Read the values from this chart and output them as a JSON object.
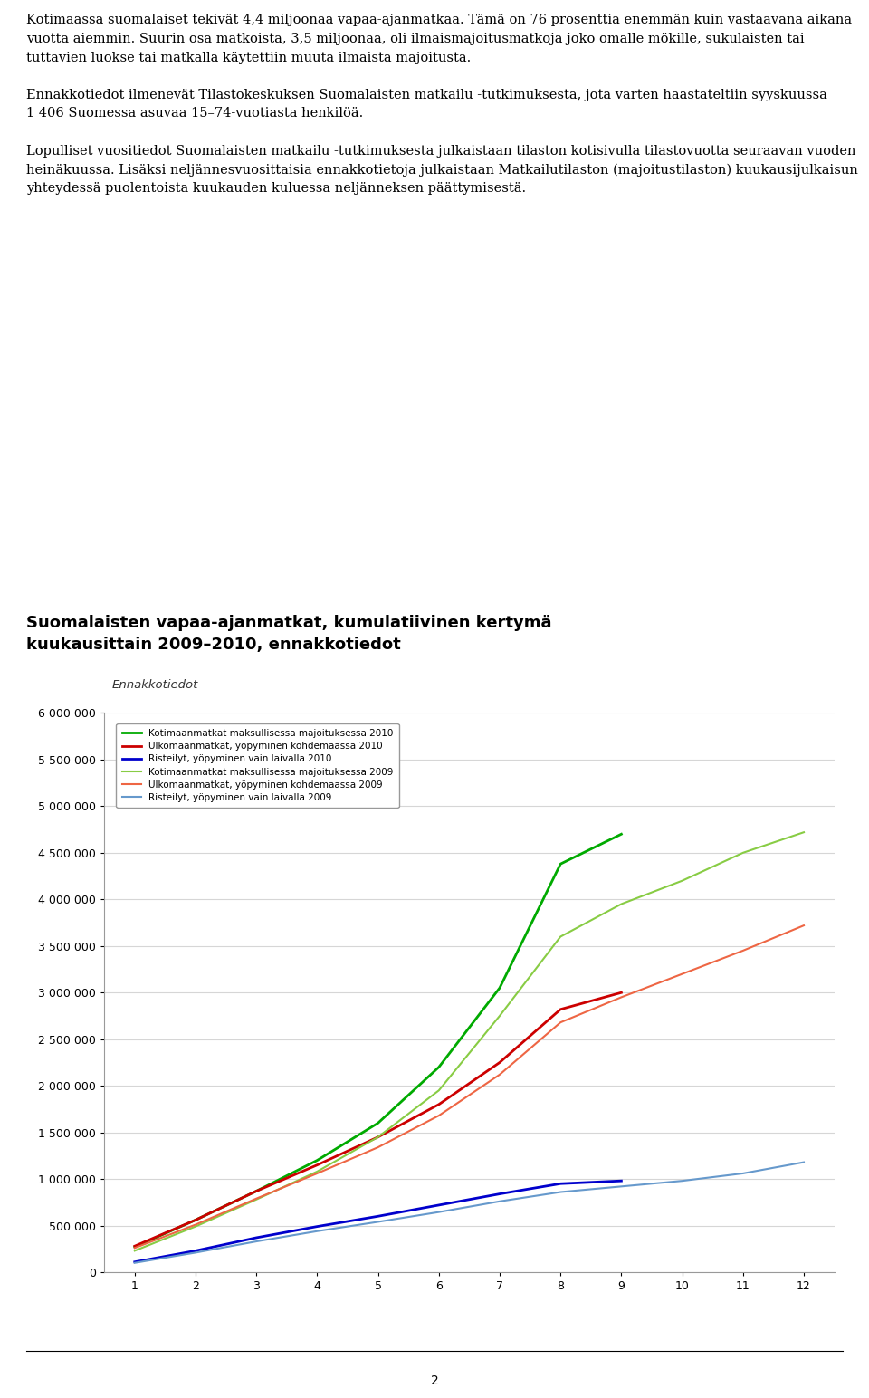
{
  "title_line1": "Suomalaisten vapaa-ajanmatkat, kumulatiivinen kertymä",
  "title_line2": "kuukausittain 2009–2010, ennakkotiedot",
  "subtitle": "Ennakkotiedot",
  "xlabel": "",
  "ylabel": "",
  "ylim": [
    0,
    6000000
  ],
  "xlim": [
    1,
    12
  ],
  "yticks": [
    0,
    500000,
    1000000,
    1500000,
    2000000,
    2500000,
    3000000,
    3500000,
    4000000,
    4500000,
    5000000,
    5500000,
    6000000
  ],
  "xticks": [
    1,
    2,
    3,
    4,
    5,
    6,
    7,
    8,
    9,
    10,
    11,
    12
  ],
  "background_color": "#ffffff",
  "series": [
    {
      "label": "Kotimaanmatkat maksullisessa majoituksessa 2010",
      "color": "#00aa00",
      "linewidth": 2.0,
      "linestyle": "solid",
      "bold": true,
      "months": [
        1,
        2,
        3,
        4,
        5,
        6,
        7,
        8,
        9
      ],
      "values": [
        270000,
        560000,
        870000,
        1200000,
        1600000,
        2200000,
        3050000,
        4380000,
        4700000
      ]
    },
    {
      "label": "Ulkomaanmatkat, yöpyminen kohdemaassa 2010",
      "color": "#cc0000",
      "linewidth": 2.0,
      "linestyle": "solid",
      "bold": true,
      "months": [
        1,
        2,
        3,
        4,
        5,
        6,
        7,
        8,
        9
      ],
      "values": [
        280000,
        560000,
        870000,
        1150000,
        1450000,
        1800000,
        2250000,
        2820000,
        3000000
      ]
    },
    {
      "label": "Risteilyt, yöpyminen vain laivalla 2010",
      "color": "#0000cc",
      "linewidth": 2.0,
      "linestyle": "solid",
      "bold": true,
      "months": [
        1,
        2,
        3,
        4,
        5,
        6,
        7,
        8,
        9
      ],
      "values": [
        110000,
        230000,
        370000,
        490000,
        600000,
        720000,
        840000,
        950000,
        980000
      ]
    },
    {
      "label": "Kotimaanmatkat maksullisessa majoituksessa 2009",
      "color": "#88cc44",
      "linewidth": 1.5,
      "linestyle": "solid",
      "bold": false,
      "months": [
        1,
        2,
        3,
        4,
        5,
        6,
        7,
        8,
        9,
        10,
        11,
        12
      ],
      "values": [
        230000,
        490000,
        780000,
        1080000,
        1450000,
        1950000,
        2750000,
        3600000,
        3950000,
        4200000,
        4500000,
        4720000
      ]
    },
    {
      "label": "Ulkomaanmatkat, yöpyminen kohdemaassa 2009",
      "color": "#ee6644",
      "linewidth": 1.5,
      "linestyle": "solid",
      "bold": false,
      "months": [
        1,
        2,
        3,
        4,
        5,
        6,
        7,
        8,
        9,
        10,
        11,
        12
      ],
      "values": [
        260000,
        510000,
        790000,
        1060000,
        1340000,
        1680000,
        2120000,
        2680000,
        2950000,
        3200000,
        3450000,
        3720000
      ]
    },
    {
      "label": "Risteilyt, yöpyminen vain laivalla 2009",
      "color": "#6699cc",
      "linewidth": 1.5,
      "linestyle": "solid",
      "bold": false,
      "months": [
        1,
        2,
        3,
        4,
        5,
        6,
        7,
        8,
        9,
        10,
        11,
        12
      ],
      "values": [
        100000,
        210000,
        330000,
        440000,
        540000,
        645000,
        760000,
        860000,
        920000,
        980000,
        1060000,
        1180000
      ]
    }
  ],
  "paragraphs": [
    "Kotimaassa suomalaiset tekivät 4,4 miljoonaa vapaa-ajanmatkaa. Tämä on 76 prosenttia enemmän kuin vastaavana aikana vuotta aiemmin. Suurin osa matkoista, 3,5 miljoonaa, oli ilmaismajoitusmatkoja joko omalle mökille, sukulaisten tai tuttavien luokse tai matkalla käytettiin muuta ilmaista majoitusta.",
    "Ennakkotiedot ilmenevät Tilastokeskuksen Suomalaisten matkailu -tutkimuksesta, jota varten haastateltiin syyskuussa 1 406 Suomessa asuvaa 15–74-vuotiasta henkilöä.",
    "Lopulliset vuositiedot Suomalaisten matkailu -tutkimuksesta julkaistaan tilaston kotisivulla tilastovuotta seuraavan vuoden heinäkuussa. Lisäksi neljännesvuosittaisia ennakkotietoja julkaistaan Matkailutilaston (majoitustilaston) kuukausijulkaisun yhteydessä puolentoista kuukauden kuluessa neljänneksen päättymisestä."
  ],
  "page_number": "2",
  "chart_box_color": "#e8e8e8",
  "legend_box": true,
  "grid_color": "#cccccc",
  "grid_alpha": 0.8
}
